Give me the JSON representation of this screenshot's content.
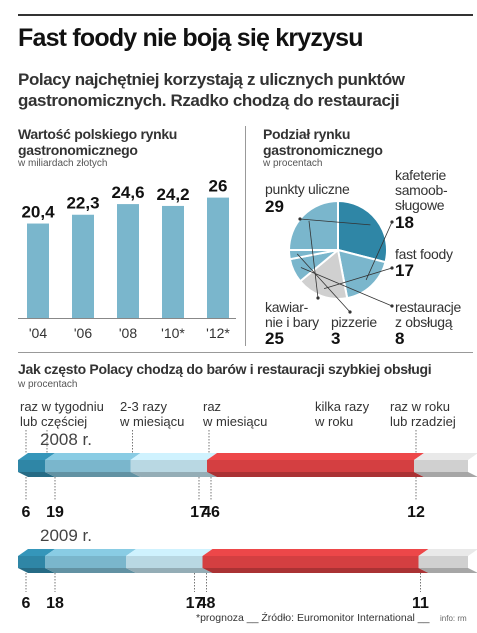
{
  "title": "Fast foody nie boją się kryzysu",
  "subtitle": "Polacy najchętniej korzystają z ulicznych punktów gastronomicznych. Rzadko chodzą do restauracji",
  "market_chart": {
    "title": "Wartość polskiego rynku gastronomicznego",
    "subtitle": "w miliardach złotych",
    "color": "#7ab6cc"
  },
  "pie_chart": {
    "title": "Podział rynku gastronomicznego",
    "subtitle": "w procentach",
    "labels": {
      "street": "punkty uliczne",
      "cafeterias": [
        "kafeterie",
        "samoob-",
        "sługowe"
      ],
      "fastfood": "fast foody",
      "restaurants": [
        "restauracje",
        "z obsługą"
      ],
      "pizzerias": "pizzerie",
      "cafes": [
        "kawiar-",
        "nie i bary"
      ]
    }
  },
  "frequency_chart": {
    "title": "Jak często Polacy chodzą do barów i restauracji szybkiej obsługi",
    "subtitle": "w procentach",
    "categories": [
      [
        "raz w tygodniu",
        "lub częściej"
      ],
      [
        "2-3 razy",
        "w miesiącu"
      ],
      [
        "raz",
        "w miesiącu"
      ],
      [
        "kilka razy",
        "w roku"
      ],
      [
        "raz w roku",
        "lub rzadziej"
      ]
    ],
    "colors": [
      "#2f86a6",
      "#7ab6cc",
      "#b9d8e3",
      "#d43f41",
      "#d0d0d0"
    ]
  },
  "footer": {
    "note": "*prognoza __ Źródło: Euromonitor International __",
    "credit": "info: rm"
  },
  "chart_data": [
    {
      "type": "bar",
      "title": "Wartość polskiego rynku gastronomicznego",
      "subtitle": "w miliardach złotych",
      "categories": [
        "'04",
        "'06",
        "'08",
        "'10*",
        "'12*"
      ],
      "values": [
        20.4,
        22.3,
        24.6,
        24.2,
        26
      ],
      "value_labels": [
        "20,4",
        "22,3",
        "24,6",
        "24,2",
        "26"
      ],
      "ylim": [
        0,
        26
      ]
    },
    {
      "type": "pie",
      "title": "Podział rynku gastronomicznego",
      "subtitle": "w procentach",
      "categories": [
        "punkty uliczne",
        "kafeterie samoobsługowe",
        "fast foody",
        "restauracje z obsługą",
        "pizzerie",
        "kawiarnie i bary"
      ],
      "values": [
        29,
        18,
        17,
        8,
        3,
        25
      ],
      "colors": [
        "#2f86a6",
        "#7ab6cc",
        "#d0d0d0",
        "#7ab6cc",
        "#7ab6cc",
        "#7ab6cc"
      ]
    },
    {
      "type": "bar",
      "orientation": "horizontal-stacked",
      "title": "Jak często Polacy chodzą do barów i restauracji szybkiej obsługi",
      "subtitle": "w procentach",
      "categories": [
        "raz w tygodniu lub częściej",
        "2-3 razy w miesiącu",
        "raz w miesiącu",
        "kilka razy w roku",
        "raz w roku lub rzadziej"
      ],
      "series": [
        {
          "name": "2008 r.",
          "values": [
            6,
            19,
            17,
            46,
            12
          ]
        },
        {
          "name": "2009 r.",
          "values": [
            6,
            18,
            17,
            48,
            11
          ]
        }
      ]
    }
  ]
}
